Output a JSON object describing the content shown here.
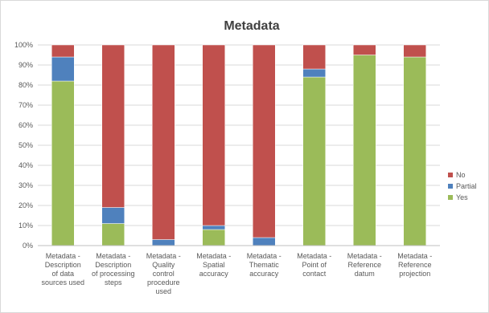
{
  "chart_data": {
    "type": "bar",
    "stacked": true,
    "title": "Metadata",
    "categories": [
      [
        "Metadata -",
        "Description",
        "of data",
        "sources used"
      ],
      [
        "Metadata -",
        "Description",
        "of processing",
        "steps"
      ],
      [
        "Metadata -",
        "Quality",
        "control",
        "procedure",
        "used"
      ],
      [
        "Metadata -",
        "Spatial",
        "accuracy"
      ],
      [
        "Metadata -",
        "Thematic",
        "accuracy"
      ],
      [
        "Metadata -",
        "Point of",
        "contact"
      ],
      [
        "Metadata -",
        "Reference",
        "datum"
      ],
      [
        "Metadata -",
        "Reference",
        "projection"
      ]
    ],
    "series": [
      {
        "name": "Yes",
        "color": "#9bbb59",
        "values": [
          82,
          11,
          0,
          8,
          0,
          84,
          95,
          94
        ]
      },
      {
        "name": "Partial",
        "color": "#4f81bd",
        "values": [
          12,
          8,
          3,
          2,
          4,
          4,
          0,
          0
        ]
      },
      {
        "name": "No",
        "color": "#c0504d",
        "values": [
          6,
          81,
          97,
          90,
          96,
          12,
          5,
          6
        ]
      }
    ],
    "ylim": [
      0,
      100
    ],
    "ytick_step": 10,
    "ytick_format": "percent",
    "legend_position": "right",
    "legend_order": [
      "No",
      "Partial",
      "Yes"
    ],
    "grid": true
  }
}
